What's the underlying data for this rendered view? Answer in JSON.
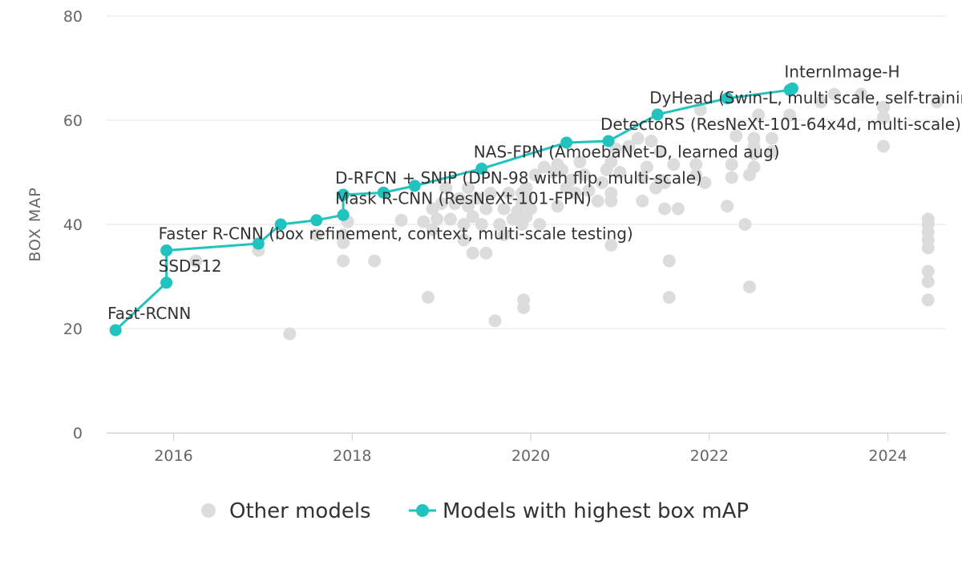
{
  "chart_data": {
    "type": "scatter",
    "ylabel": "BOX MAP",
    "xlabel": "",
    "xlim": [
      2015.25,
      2024.65
    ],
    "ylim": [
      0,
      80
    ],
    "x_ticks": [
      2016,
      2018,
      2020,
      2022,
      2024
    ],
    "y_ticks": [
      0,
      20,
      40,
      60,
      80
    ],
    "grid": "horizontal",
    "legend_position": "bottom-center",
    "colors": {
      "other": "#dcdcdc",
      "sota": "#20c3bd",
      "grid": "#e6e6e6",
      "text": "#333333",
      "axis_text": "#666666"
    },
    "series": [
      {
        "name": "Other models",
        "kind": "scatter",
        "points": [
          [
            2016.25,
            33
          ],
          [
            2016.95,
            35
          ],
          [
            2017.3,
            19
          ],
          [
            2017.6,
            38
          ],
          [
            2017.9,
            33
          ],
          [
            2017.9,
            36.5
          ],
          [
            2017.9,
            38
          ],
          [
            2017.95,
            40.5
          ],
          [
            2018.25,
            33
          ],
          [
            2018.55,
            40.8
          ],
          [
            2018.8,
            40.5
          ],
          [
            2018.85,
            26
          ],
          [
            2018.9,
            39
          ],
          [
            2018.9,
            43
          ],
          [
            2018.95,
            41
          ],
          [
            2019.0,
            44
          ],
          [
            2019.05,
            47
          ],
          [
            2019.1,
            41
          ],
          [
            2019.15,
            44
          ],
          [
            2019.2,
            45
          ],
          [
            2019.25,
            40
          ],
          [
            2019.25,
            37
          ],
          [
            2019.3,
            43.5
          ],
          [
            2019.3,
            47
          ],
          [
            2019.35,
            34.5
          ],
          [
            2019.35,
            41.5
          ],
          [
            2019.4,
            45
          ],
          [
            2019.45,
            40
          ],
          [
            2019.5,
            34.5
          ],
          [
            2019.5,
            43
          ],
          [
            2019.55,
            46
          ],
          [
            2019.6,
            21.5
          ],
          [
            2019.65,
            40
          ],
          [
            2019.7,
            38
          ],
          [
            2019.7,
            43
          ],
          [
            2019.75,
            46
          ],
          [
            2019.8,
            41
          ],
          [
            2019.85,
            42.5
          ],
          [
            2019.9,
            40
          ],
          [
            2019.9,
            44
          ],
          [
            2019.9,
            46
          ],
          [
            2019.92,
            25.5
          ],
          [
            2019.92,
            24
          ],
          [
            2019.95,
            41.5
          ],
          [
            2019.95,
            45
          ],
          [
            2019.95,
            47
          ],
          [
            2020.0,
            43
          ],
          [
            2020.05,
            49.5
          ],
          [
            2020.1,
            40
          ],
          [
            2020.15,
            51
          ],
          [
            2020.25,
            50
          ],
          [
            2020.3,
            51.5
          ],
          [
            2020.3,
            43.5
          ],
          [
            2020.35,
            50.5
          ],
          [
            2020.4,
            47
          ],
          [
            2020.45,
            48.5
          ],
          [
            2020.5,
            46
          ],
          [
            2020.55,
            52
          ],
          [
            2020.6,
            49.5
          ],
          [
            2020.65,
            46.5
          ],
          [
            2020.75,
            44.5
          ],
          [
            2020.8,
            48
          ],
          [
            2020.85,
            50.5
          ],
          [
            2020.9,
            36
          ],
          [
            2020.9,
            44.5
          ],
          [
            2020.9,
            46
          ],
          [
            2020.9,
            52
          ],
          [
            2020.95,
            54.5
          ],
          [
            2021.0,
            50
          ],
          [
            2021.1,
            55
          ],
          [
            2021.2,
            56.5
          ],
          [
            2021.25,
            44.5
          ],
          [
            2021.25,
            49
          ],
          [
            2021.3,
            51
          ],
          [
            2021.35,
            56
          ],
          [
            2021.4,
            47
          ],
          [
            2021.45,
            48.5
          ],
          [
            2021.45,
            54
          ],
          [
            2021.5,
            43
          ],
          [
            2021.5,
            48
          ],
          [
            2021.55,
            26
          ],
          [
            2021.55,
            33
          ],
          [
            2021.6,
            51.5
          ],
          [
            2021.65,
            43
          ],
          [
            2021.85,
            49.5
          ],
          [
            2021.85,
            51.5
          ],
          [
            2021.95,
            48
          ],
          [
            2021.9,
            62
          ],
          [
            2022.2,
            43.5
          ],
          [
            2022.25,
            49
          ],
          [
            2022.25,
            51.5
          ],
          [
            2022.3,
            57
          ],
          [
            2022.4,
            40
          ],
          [
            2022.45,
            28
          ],
          [
            2022.45,
            49.5
          ],
          [
            2022.5,
            51
          ],
          [
            2022.5,
            53.5
          ],
          [
            2022.5,
            55
          ],
          [
            2022.5,
            56.5
          ],
          [
            2022.55,
            61
          ],
          [
            2022.7,
            54
          ],
          [
            2022.7,
            56.5
          ],
          [
            2022.9,
            61
          ],
          [
            2023.25,
            63.5
          ],
          [
            2023.4,
            65
          ],
          [
            2023.7,
            65
          ],
          [
            2023.95,
            55
          ],
          [
            2023.95,
            60.5
          ],
          [
            2023.95,
            62.5
          ],
          [
            2024.45,
            25.5
          ],
          [
            2024.45,
            29
          ],
          [
            2024.45,
            31
          ],
          [
            2024.45,
            35.5
          ],
          [
            2024.45,
            37
          ],
          [
            2024.45,
            38.5
          ],
          [
            2024.45,
            40
          ],
          [
            2024.45,
            41
          ],
          [
            2024.55,
            63.5
          ]
        ]
      },
      {
        "name": "Models with highest box mAP",
        "kind": "line",
        "points": [
          [
            2015.35,
            19.7
          ],
          [
            2015.92,
            28.8
          ],
          [
            2015.92,
            35.0
          ],
          [
            2016.95,
            36.3
          ],
          [
            2017.2,
            40.0
          ],
          [
            2017.6,
            40.8
          ],
          [
            2017.9,
            41.8
          ],
          [
            2017.9,
            45.7
          ],
          [
            2018.35,
            46.1
          ],
          [
            2018.7,
            47.4
          ],
          [
            2019.45,
            50.7
          ],
          [
            2020.4,
            55.7
          ],
          [
            2020.87,
            56.0
          ],
          [
            2021.42,
            61.1
          ],
          [
            2022.2,
            64.2
          ],
          [
            2022.9,
            65.8
          ],
          [
            2022.93,
            66.1
          ]
        ]
      }
    ],
    "annotations": [
      {
        "text": "Fast-RCNN",
        "x": 2015.35,
        "y": 19.7
      },
      {
        "text": "SSD512",
        "x": 2015.92,
        "y": 28.8
      },
      {
        "text": "Faster R-CNN (box refinement, context, multi-scale testing)",
        "x": 2015.92,
        "y": 35.0
      },
      {
        "text": "Mask R-CNN (ResNeXt-101-FPN)",
        "x": 2017.9,
        "y": 41.8
      },
      {
        "text": "D-RFCN + SNIP (DPN-98 with flip, multi-scale)",
        "x": 2017.9,
        "y": 45.7
      },
      {
        "text": "NAS-FPN (AmoebaNet-D, learned aug)",
        "x": 2019.45,
        "y": 50.7
      },
      {
        "text": "DetectoRS (ResNeXt-101-64x4d, multi-scale)",
        "x": 2020.87,
        "y": 56.0
      },
      {
        "text": "DyHead (Swin-L, multi scale, self-training)",
        "x": 2021.42,
        "y": 61.1
      },
      {
        "text": "InternImage-H",
        "x": 2022.93,
        "y": 66.1
      }
    ]
  }
}
